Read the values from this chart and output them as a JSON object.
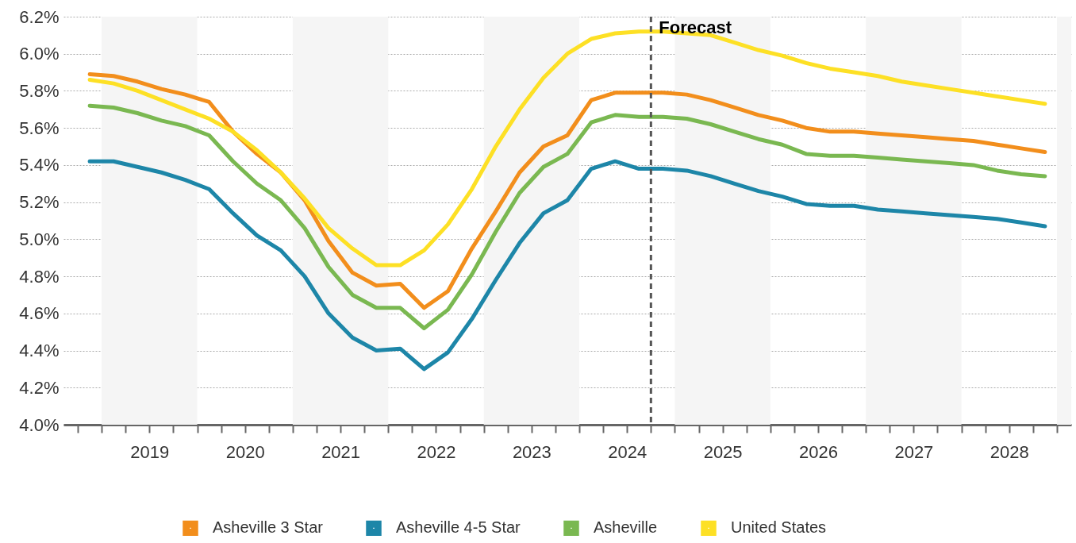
{
  "chart_data": {
    "type": "line",
    "x": [
      2018.875,
      2019.125,
      2019.375,
      2019.625,
      2019.875,
      2020.125,
      2020.375,
      2020.625,
      2020.875,
      2021.125,
      2021.375,
      2021.625,
      2021.875,
      2022.125,
      2022.375,
      2022.625,
      2022.875,
      2023.125,
      2023.375,
      2023.625,
      2023.875,
      2024.125,
      2024.375,
      2024.625,
      2024.875,
      2025.125,
      2025.375,
      2025.625,
      2025.875,
      2026.125,
      2026.375,
      2026.625,
      2026.875,
      2027.125,
      2027.375,
      2027.625,
      2027.875,
      2028.125,
      2028.375,
      2028.625,
      2028.875
    ],
    "series": [
      {
        "name": "Asheville 3 Star",
        "color": "#f28e1c",
        "values": [
          5.89,
          5.88,
          5.85,
          5.81,
          5.78,
          5.74,
          5.58,
          5.46,
          5.36,
          5.21,
          4.99,
          4.82,
          4.75,
          4.76,
          4.63,
          4.72,
          4.95,
          5.15,
          5.36,
          5.5,
          5.56,
          5.75,
          5.79,
          5.79,
          5.79,
          5.78,
          5.75,
          5.71,
          5.67,
          5.64,
          5.6,
          5.58,
          5.58,
          5.57,
          5.56,
          5.55,
          5.54,
          5.53,
          5.51,
          5.49,
          5.47
        ]
      },
      {
        "name": "Asheville 4-5 Star",
        "color": "#1d86a8",
        "values": [
          5.42,
          5.42,
          5.39,
          5.36,
          5.32,
          5.27,
          5.14,
          5.02,
          4.94,
          4.8,
          4.6,
          4.47,
          4.4,
          4.41,
          4.3,
          4.39,
          4.57,
          4.78,
          4.98,
          5.14,
          5.21,
          5.38,
          5.42,
          5.38,
          5.38,
          5.37,
          5.34,
          5.3,
          5.26,
          5.23,
          5.19,
          5.18,
          5.18,
          5.16,
          5.15,
          5.14,
          5.13,
          5.12,
          5.11,
          5.09,
          5.07
        ]
      },
      {
        "name": "Asheville",
        "color": "#7ab851",
        "values": [
          5.72,
          5.71,
          5.68,
          5.64,
          5.61,
          5.56,
          5.42,
          5.3,
          5.21,
          5.06,
          4.85,
          4.7,
          4.63,
          4.63,
          4.52,
          4.62,
          4.81,
          5.04,
          5.25,
          5.39,
          5.46,
          5.63,
          5.67,
          5.66,
          5.66,
          5.65,
          5.62,
          5.58,
          5.54,
          5.51,
          5.46,
          5.45,
          5.45,
          5.44,
          5.43,
          5.42,
          5.41,
          5.4,
          5.37,
          5.35,
          5.34
        ]
      },
      {
        "name": "United States",
        "color": "#fde025",
        "values": [
          5.86,
          5.84,
          5.8,
          5.75,
          5.7,
          5.65,
          5.58,
          5.48,
          5.36,
          5.22,
          5.06,
          4.95,
          4.86,
          4.86,
          4.94,
          5.08,
          5.27,
          5.5,
          5.7,
          5.87,
          6.0,
          6.08,
          6.11,
          6.12,
          6.12,
          6.11,
          6.1,
          6.06,
          6.02,
          5.99,
          5.95,
          5.92,
          5.9,
          5.88,
          5.85,
          5.83,
          5.81,
          5.79,
          5.77,
          5.75,
          5.73
        ]
      }
    ],
    "xlim": [
      2018.6,
      2029.15
    ],
    "xticks": [
      {
        "value": 2018.75,
        "label": null
      },
      {
        "value": 2019,
        "label": null
      },
      {
        "value": 2019.25,
        "label": null
      },
      {
        "value": 2019.5,
        "label": "2019"
      },
      {
        "value": 2019.75,
        "label": null
      },
      {
        "value": 2020,
        "label": null
      },
      {
        "value": 2020.25,
        "label": null
      },
      {
        "value": 2020.5,
        "label": "2020"
      },
      {
        "value": 2020.75,
        "label": null
      },
      {
        "value": 2021,
        "label": null
      },
      {
        "value": 2021.25,
        "label": null
      },
      {
        "value": 2021.5,
        "label": "2021"
      },
      {
        "value": 2021.75,
        "label": null
      },
      {
        "value": 2022,
        "label": null
      },
      {
        "value": 2022.25,
        "label": null
      },
      {
        "value": 2022.5,
        "label": "2022"
      },
      {
        "value": 2022.75,
        "label": null
      },
      {
        "value": 2023,
        "label": null
      },
      {
        "value": 2023.25,
        "label": null
      },
      {
        "value": 2023.5,
        "label": "2023"
      },
      {
        "value": 2023.75,
        "label": null
      },
      {
        "value": 2024,
        "label": null
      },
      {
        "value": 2024.25,
        "label": null
      },
      {
        "value": 2024.5,
        "label": "2024"
      },
      {
        "value": 2024.75,
        "label": null
      },
      {
        "value": 2025,
        "label": null
      },
      {
        "value": 2025.25,
        "label": null
      },
      {
        "value": 2025.5,
        "label": "2025"
      },
      {
        "value": 2025.75,
        "label": null
      },
      {
        "value": 2026,
        "label": null
      },
      {
        "value": 2026.25,
        "label": null
      },
      {
        "value": 2026.5,
        "label": "2026"
      },
      {
        "value": 2026.75,
        "label": null
      },
      {
        "value": 2027,
        "label": null
      },
      {
        "value": 2027.25,
        "label": null
      },
      {
        "value": 2027.5,
        "label": "2027"
      },
      {
        "value": 2027.75,
        "label": null
      },
      {
        "value": 2028,
        "label": null
      },
      {
        "value": 2028.25,
        "label": null
      },
      {
        "value": 2028.5,
        "label": "2028"
      },
      {
        "value": 2028.75,
        "label": null
      },
      {
        "value": 2029,
        "label": null
      }
    ],
    "ylim": [
      4.0,
      6.2
    ],
    "yticks": [
      {
        "value": 4.0,
        "label": "4.0%"
      },
      {
        "value": 4.2,
        "label": "4.2%"
      },
      {
        "value": 4.4,
        "label": "4.4%"
      },
      {
        "value": 4.6,
        "label": "4.6%"
      },
      {
        "value": 4.8,
        "label": "4.8%"
      },
      {
        "value": 5.0,
        "label": "5.0%"
      },
      {
        "value": 5.2,
        "label": "5.2%"
      },
      {
        "value": 5.4,
        "label": "5.4%"
      },
      {
        "value": 5.6,
        "label": "5.6%"
      },
      {
        "value": 5.8,
        "label": "5.8%"
      },
      {
        "value": 6.0,
        "label": "6.0%"
      },
      {
        "value": 6.2,
        "label": "6.2%"
      }
    ],
    "bands": [
      {
        "axis": "x",
        "from": 2019,
        "to": 2020,
        "color": "#f5f5f5"
      },
      {
        "axis": "x",
        "from": 2021,
        "to": 2022,
        "color": "#f5f5f5"
      },
      {
        "axis": "x",
        "from": 2023,
        "to": 2024,
        "color": "#f5f5f5"
      },
      {
        "axis": "x",
        "from": 2025,
        "to": 2026,
        "color": "#f5f5f5"
      },
      {
        "axis": "x",
        "from": 2027,
        "to": 2028,
        "color": "#f5f5f5"
      },
      {
        "axis": "x",
        "from": 2029,
        "to": 2029.15,
        "color": "#f5f5f5"
      }
    ],
    "ref_lines": [
      {
        "axis": "x",
        "value": 2024.75,
        "label": "Forecast",
        "color": "#555555",
        "line_style": "dashed"
      }
    ],
    "grid": "y",
    "legend": "bottom",
    "marker": "none",
    "line_style": "solid"
  }
}
